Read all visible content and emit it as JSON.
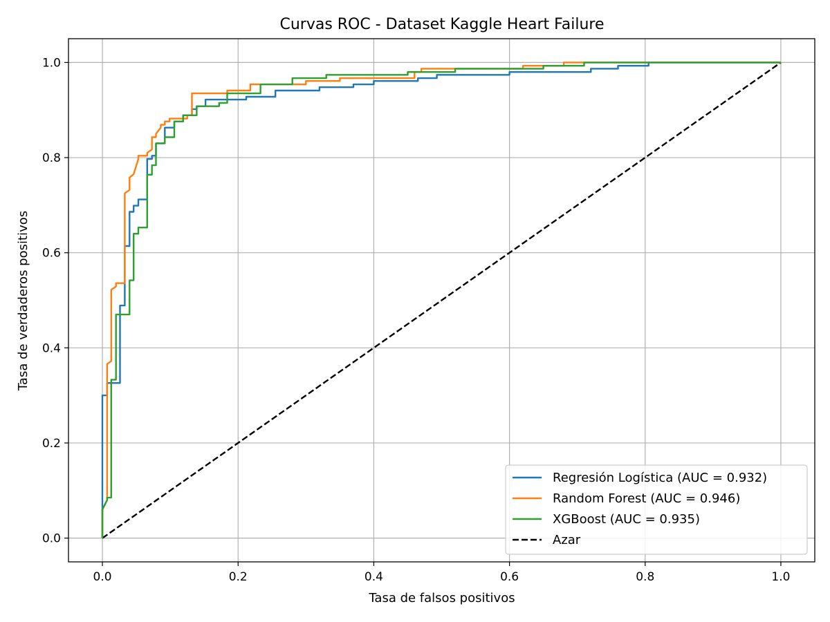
{
  "chart_data": {
    "type": "line",
    "title": "Curvas ROC - Dataset Kaggle Heart Failure",
    "xlabel": "Tasa de falsos positivos",
    "ylabel": "Tasa de verdaderos positivos",
    "xlim": [
      -0.05,
      1.05
    ],
    "ylim": [
      -0.05,
      1.05
    ],
    "xticks": [
      0.0,
      0.2,
      0.4,
      0.6,
      0.8,
      1.0
    ],
    "yticks": [
      0.0,
      0.2,
      0.4,
      0.6,
      0.8,
      1.0
    ],
    "xtick_labels": [
      "0.0",
      "0.2",
      "0.4",
      "0.6",
      "0.8",
      "1.0"
    ],
    "ytick_labels": [
      "0.0",
      "0.2",
      "0.4",
      "0.6",
      "0.8",
      "1.0"
    ],
    "grid": true,
    "legend_position": "lower-right",
    "series": [
      {
        "name": "Regresión Logística (AUC = 0.932)",
        "color": "#1f77b4",
        "dash": "solid",
        "x": [
          0,
          0,
          0.007,
          0.007,
          0.013,
          0.013,
          0.026,
          0.026,
          0.033,
          0.033,
          0.04,
          0.04,
          0.046,
          0.046,
          0.053,
          0.053,
          0.059,
          0.059,
          0.066,
          0.066,
          0.073,
          0.073,
          0.079,
          0.079,
          0.086,
          0.086,
          0.092,
          0.092,
          0.106,
          0.106,
          0.119,
          0.119,
          0.132,
          0.132,
          0.139,
          0.139,
          0.152,
          0.152,
          0.178,
          0.178,
          0.212,
          0.212,
          0.255,
          0.255,
          0.32,
          0.32,
          0.37,
          0.37,
          0.4,
          0.4,
          0.465,
          0.465,
          0.493,
          0.493,
          0.6,
          0.6,
          0.72,
          0.72,
          0.76,
          0.76,
          0.805,
          0.805,
          1.0
        ],
        "y": [
          0,
          0.3,
          0.3,
          0.326,
          0.326,
          0.326,
          0.326,
          0.489,
          0.489,
          0.614,
          0.614,
          0.686,
          0.686,
          0.699,
          0.699,
          0.712,
          0.712,
          0.712,
          0.712,
          0.797,
          0.797,
          0.804,
          0.804,
          0.83,
          0.83,
          0.83,
          0.83,
          0.863,
          0.863,
          0.876,
          0.876,
          0.889,
          0.889,
          0.902,
          0.902,
          0.908,
          0.908,
          0.922,
          0.922,
          0.922,
          0.922,
          0.928,
          0.928,
          0.941,
          0.941,
          0.948,
          0.948,
          0.954,
          0.954,
          0.961,
          0.961,
          0.967,
          0.967,
          0.974,
          0.974,
          0.98,
          0.98,
          0.987,
          0.987,
          0.993,
          0.993,
          1.0,
          1.0
        ]
      },
      {
        "name": "Random Forest (AUC = 0.946)",
        "color": "#ff7f0e",
        "dash": "solid",
        "x": [
          0,
          0,
          0.007,
          0.007,
          0.013,
          0.013,
          0.02,
          0.02,
          0.026,
          0.026,
          0.033,
          0.033,
          0.04,
          0.04,
          0.046,
          0.046,
          0.053,
          0.053,
          0.066,
          0.066,
          0.073,
          0.073,
          0.079,
          0.079,
          0.086,
          0.086,
          0.092,
          0.092,
          0.099,
          0.099,
          0.106,
          0.106,
          0.125,
          0.125,
          0.132,
          0.132,
          0.184,
          0.184,
          0.198,
          0.198,
          0.218,
          0.218,
          0.3,
          0.3,
          0.35,
          0.35,
          0.46,
          0.46,
          0.47,
          0.47,
          0.62,
          0.62,
          0.68,
          0.68,
          1.0
        ],
        "y": [
          0,
          0.06,
          0.08,
          0.366,
          0.372,
          0.522,
          0.529,
          0.536,
          0.536,
          0.536,
          0.536,
          0.725,
          0.732,
          0.758,
          0.765,
          0.765,
          0.797,
          0.804,
          0.804,
          0.81,
          0.817,
          0.843,
          0.843,
          0.85,
          0.863,
          0.869,
          0.869,
          0.876,
          0.876,
          0.882,
          0.882,
          0.882,
          0.882,
          0.889,
          0.889,
          0.935,
          0.935,
          0.941,
          0.941,
          0.941,
          0.941,
          0.954,
          0.954,
          0.961,
          0.961,
          0.967,
          0.967,
          0.98,
          0.98,
          0.987,
          0.987,
          0.993,
          0.993,
          1.0,
          1.0
        ]
      },
      {
        "name": "XGBoost (AUC = 0.935)",
        "color": "#2ca02c",
        "dash": "solid",
        "x": [
          0,
          0,
          0.007,
          0.007,
          0.013,
          0.013,
          0.02,
          0.02,
          0.04,
          0.04,
          0.046,
          0.046,
          0.053,
          0.053,
          0.059,
          0.059,
          0.066,
          0.066,
          0.073,
          0.073,
          0.079,
          0.079,
          0.092,
          0.092,
          0.106,
          0.106,
          0.119,
          0.119,
          0.139,
          0.139,
          0.172,
          0.172,
          0.184,
          0.184,
          0.233,
          0.233,
          0.28,
          0.28,
          0.33,
          0.33,
          0.45,
          0.45,
          0.52,
          0.52,
          0.61,
          0.61,
          0.65,
          0.65,
          0.71,
          0.71,
          1.0
        ],
        "y": [
          0,
          0.06,
          0.08,
          0.085,
          0.085,
          0.333,
          0.333,
          0.47,
          0.47,
          0.542,
          0.542,
          0.64,
          0.64,
          0.653,
          0.653,
          0.653,
          0.653,
          0.764,
          0.764,
          0.784,
          0.784,
          0.83,
          0.83,
          0.843,
          0.843,
          0.876,
          0.876,
          0.889,
          0.889,
          0.908,
          0.908,
          0.915,
          0.915,
          0.935,
          0.935,
          0.954,
          0.954,
          0.967,
          0.967,
          0.974,
          0.974,
          0.98,
          0.98,
          0.987,
          0.987,
          0.987,
          0.987,
          0.993,
          0.993,
          1.0,
          1.0
        ]
      },
      {
        "name": "Azar",
        "color": "#000000",
        "dash": "dashed",
        "x": [
          0,
          1
        ],
        "y": [
          0,
          1
        ]
      }
    ]
  }
}
